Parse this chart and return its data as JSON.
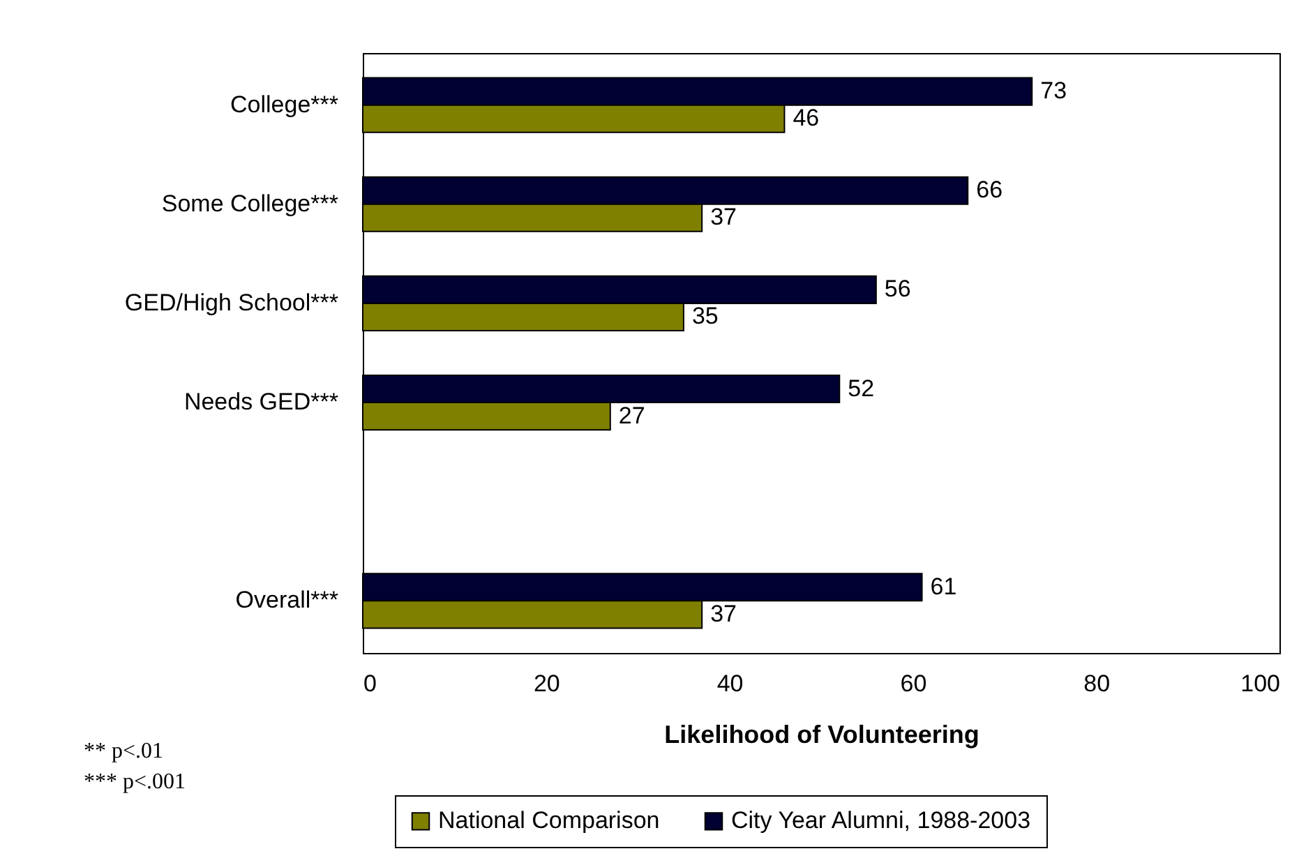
{
  "chart_data": {
    "type": "bar",
    "orientation": "horizontal",
    "categories": [
      "College***",
      "Some College***",
      "GED/High School***",
      "Needs GED***",
      null,
      "Overall***"
    ],
    "series": [
      {
        "name": "City Year Alumni, 1988-2003",
        "color": "#000033",
        "values": [
          73,
          66,
          56,
          52,
          null,
          61
        ]
      },
      {
        "name": "National Comparison",
        "color": "#808000",
        "values": [
          46,
          37,
          35,
          27,
          null,
          37
        ]
      }
    ],
    "xlim": [
      0,
      100
    ],
    "xticks": [
      0,
      20,
      40,
      60,
      80,
      100
    ],
    "xlabel": "Likelihood of Volunteering",
    "data_labels": true,
    "grid": false,
    "legend": "bottom",
    "annotations": [
      "** p<.01",
      "*** p<.001"
    ]
  }
}
